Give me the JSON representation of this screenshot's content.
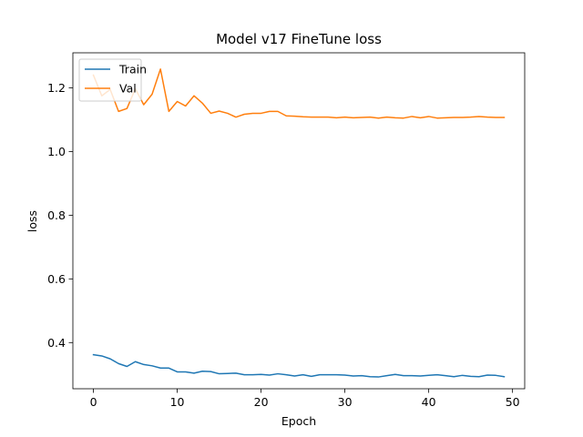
{
  "chart_data": {
    "type": "line",
    "title": "Model v17 FineTune loss",
    "xlabel": "Epoch",
    "ylabel": "loss",
    "xlim": [
      -2.45,
      51.45
    ],
    "ylim": [
      0.255,
      1.31
    ],
    "xticks": [
      0,
      10,
      20,
      30,
      40,
      50
    ],
    "yticks": [
      0.4,
      0.6,
      0.8,
      1.0,
      1.2
    ],
    "ytick_labels": [
      "0.4",
      "0.6",
      "0.8",
      "1.0",
      "1.2"
    ],
    "grid": false,
    "legend_position": "top-left",
    "x": [
      0,
      1,
      2,
      3,
      4,
      5,
      6,
      7,
      8,
      9,
      10,
      11,
      12,
      13,
      14,
      15,
      16,
      17,
      18,
      19,
      20,
      21,
      22,
      23,
      24,
      25,
      26,
      27,
      28,
      29,
      30,
      31,
      32,
      33,
      34,
      35,
      36,
      37,
      38,
      39,
      40,
      41,
      42,
      43,
      44,
      45,
      46,
      47,
      48,
      49
    ],
    "series": [
      {
        "name": "Train",
        "color": "#1f77b4",
        "values": [
          0.362,
          0.358,
          0.349,
          0.334,
          0.325,
          0.34,
          0.331,
          0.327,
          0.32,
          0.32,
          0.308,
          0.308,
          0.304,
          0.31,
          0.309,
          0.302,
          0.303,
          0.304,
          0.299,
          0.299,
          0.3,
          0.298,
          0.302,
          0.299,
          0.295,
          0.299,
          0.294,
          0.299,
          0.299,
          0.299,
          0.298,
          0.295,
          0.296,
          0.293,
          0.292,
          0.296,
          0.3,
          0.296,
          0.296,
          0.295,
          0.297,
          0.299,
          0.296,
          0.293,
          0.297,
          0.294,
          0.293,
          0.298,
          0.297,
          0.293
        ]
      },
      {
        "name": "Val",
        "color": "#ff7f0e",
        "values": [
          1.24,
          1.175,
          1.195,
          1.126,
          1.135,
          1.197,
          1.147,
          1.18,
          1.259,
          1.126,
          1.157,
          1.143,
          1.175,
          1.152,
          1.12,
          1.127,
          1.12,
          1.108,
          1.117,
          1.12,
          1.12,
          1.126,
          1.126,
          1.112,
          1.111,
          1.109,
          1.108,
          1.108,
          1.108,
          1.106,
          1.108,
          1.106,
          1.107,
          1.108,
          1.105,
          1.108,
          1.106,
          1.105,
          1.11,
          1.106,
          1.11,
          1.105,
          1.106,
          1.107,
          1.107,
          1.108,
          1.11,
          1.108,
          1.107,
          1.107
        ]
      }
    ]
  }
}
